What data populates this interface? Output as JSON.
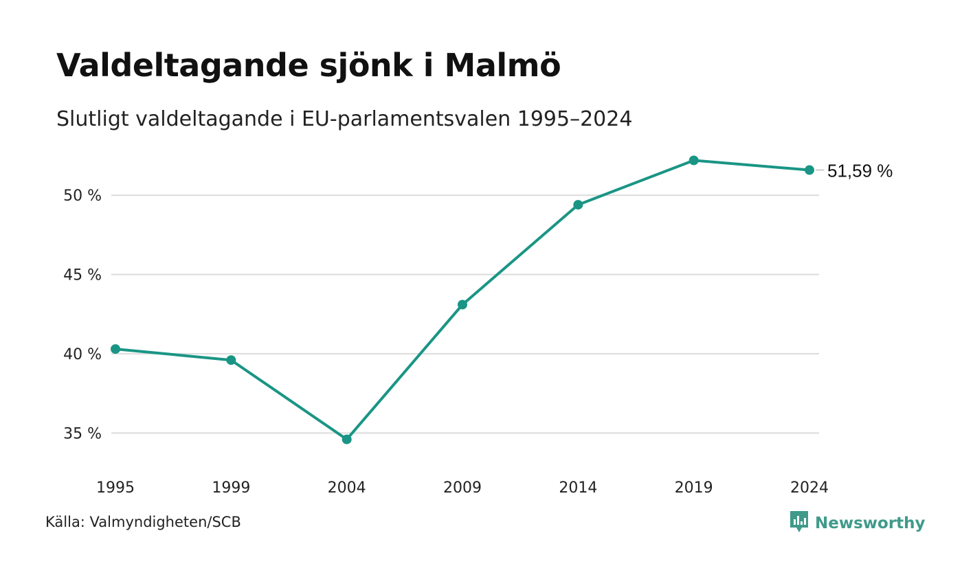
{
  "title": "Valdeltagande sjönk i Malmö",
  "subtitle": "Slutligt valdeltagande i EU-parlamentsvalen 1995–2024",
  "source": "Källa: Valmyndigheten/SCB",
  "brand": {
    "name": "Newsworthy",
    "icon": "newsworthy-logo-icon",
    "color": "#3f9a8a"
  },
  "chart_data": {
    "type": "line",
    "title": "Valdeltagande sjönk i Malmö",
    "subtitle": "Slutligt valdeltagande i EU-parlamentsvalen 1995–2024",
    "xlabel": "",
    "ylabel": "",
    "x": [
      "1995",
      "1999",
      "2004",
      "2009",
      "2014",
      "2019",
      "2024"
    ],
    "series": [
      {
        "values": [
          40.3,
          39.6,
          34.6,
          43.1,
          49.4,
          52.2,
          51.59
        ],
        "color": "#1a9585"
      }
    ],
    "yticks": [
      35,
      40,
      45,
      50
    ],
    "ytick_labels": [
      "35 %",
      "40 %",
      "45 %",
      "50 %"
    ],
    "ylim": [
      33.5,
      53
    ],
    "end_label": "51,59 %",
    "grid": true,
    "legend": "none"
  }
}
